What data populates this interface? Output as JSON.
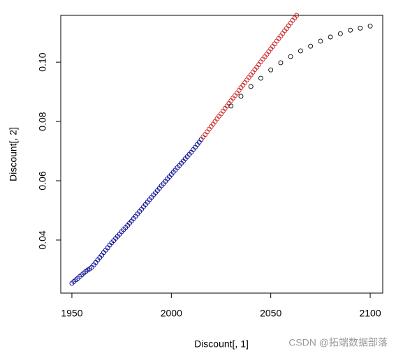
{
  "chart_data": {
    "type": "scatter",
    "xlabel": "Discount[, 1]",
    "ylabel": "Discount[, 2]",
    "xlim": [
      1944.4,
      2106.3
    ],
    "ylim": [
      0.0221,
      0.1158
    ],
    "xticks": [
      1950,
      2000,
      2050,
      2100
    ],
    "yticks": [
      0.04,
      0.06,
      0.08,
      {
        "value": 0.1,
        "label": "0.10"
      }
    ],
    "annotation": "CSDN @拓端数据部落",
    "series": [
      {
        "color": "#00008b",
        "x": [
          1950,
          1951,
          1952,
          1953,
          1954,
          1955,
          1956,
          1957,
          1958,
          1959,
          1960,
          1961,
          1962,
          1963,
          1964,
          1965,
          1966,
          1967,
          1968,
          1969,
          1970,
          1971,
          1972,
          1973,
          1974,
          1975,
          1976,
          1977,
          1978,
          1979,
          1980,
          1981,
          1982,
          1983,
          1984,
          1985,
          1986,
          1987,
          1988,
          1989,
          1990,
          1991,
          1992,
          1993,
          1994,
          1995,
          1996,
          1997,
          1998,
          1999,
          2000,
          2001,
          2002,
          2003,
          2004,
          2005,
          2006,
          2007,
          2008,
          2009,
          2010,
          2011,
          2012,
          2013,
          2014,
          2015
        ],
        "values": [
          0.0254,
          0.026,
          0.0266,
          0.0271,
          0.0277,
          0.0283,
          0.0289,
          0.0294,
          0.0299,
          0.0303,
          0.0308,
          0.0316,
          0.0324,
          0.0333,
          0.0341,
          0.0349,
          0.0358,
          0.0366,
          0.0374,
          0.0383,
          0.0391,
          0.0398,
          0.0406,
          0.0413,
          0.042,
          0.0428,
          0.0435,
          0.0442,
          0.0449,
          0.0457,
          0.0464,
          0.0472,
          0.048,
          0.0488,
          0.0496,
          0.0504,
          0.0512,
          0.052,
          0.0528,
          0.0536,
          0.0544,
          0.0552,
          0.0559,
          0.0567,
          0.0575,
          0.0583,
          0.059,
          0.0598,
          0.0606,
          0.0613,
          0.0621,
          0.0629,
          0.0636,
          0.0644,
          0.0651,
          0.0659,
          0.0666,
          0.0674,
          0.0681,
          0.0689,
          0.0696,
          0.0705,
          0.0713,
          0.0722,
          0.073,
          0.0739
        ]
      },
      {
        "color": "#cc2222",
        "x": [
          2016,
          2017,
          2018,
          2019,
          2020,
          2021,
          2022,
          2023,
          2024,
          2025,
          2026,
          2027,
          2028,
          2029,
          2030,
          2031,
          2032,
          2033,
          2034,
          2035,
          2036,
          2037,
          2038,
          2039,
          2040,
          2041,
          2042,
          2043,
          2044,
          2045,
          2046,
          2047,
          2048,
          2049,
          2050,
          2051,
          2052,
          2053,
          2054,
          2055,
          2056,
          2057,
          2058,
          2059,
          2060,
          2061,
          2062,
          2063
        ],
        "values": [
          0.0748,
          0.0756,
          0.0765,
          0.0774,
          0.0783,
          0.0791,
          0.08,
          0.0809,
          0.0818,
          0.0826,
          0.0835,
          0.0844,
          0.0852,
          0.0861,
          0.087,
          0.0879,
          0.0887,
          0.0896,
          0.0905,
          0.0914,
          0.0922,
          0.0931,
          0.094,
          0.0949,
          0.0957,
          0.0966,
          0.0975,
          0.0983,
          0.0992,
          0.1001,
          0.101,
          0.1018,
          0.1027,
          0.1036,
          0.1045,
          0.1053,
          0.1062,
          0.1071,
          0.108,
          0.1088,
          0.1097,
          0.1106,
          0.1114,
          0.1123,
          0.1132,
          0.1141,
          0.1149,
          0.1158
        ]
      },
      {
        "color": "#000000",
        "x": [
          2030,
          2035,
          2040,
          2045,
          2050,
          2055,
          2060,
          2065,
          2070,
          2075,
          2080,
          2085,
          2090,
          2095,
          2100
        ],
        "values": [
          0.0852,
          0.0885,
          0.0918,
          0.0946,
          0.0974,
          0.0998,
          0.1019,
          0.1038,
          0.1054,
          0.1071,
          0.1085,
          0.1096,
          0.1108,
          0.1115,
          0.1122
        ]
      }
    ]
  }
}
